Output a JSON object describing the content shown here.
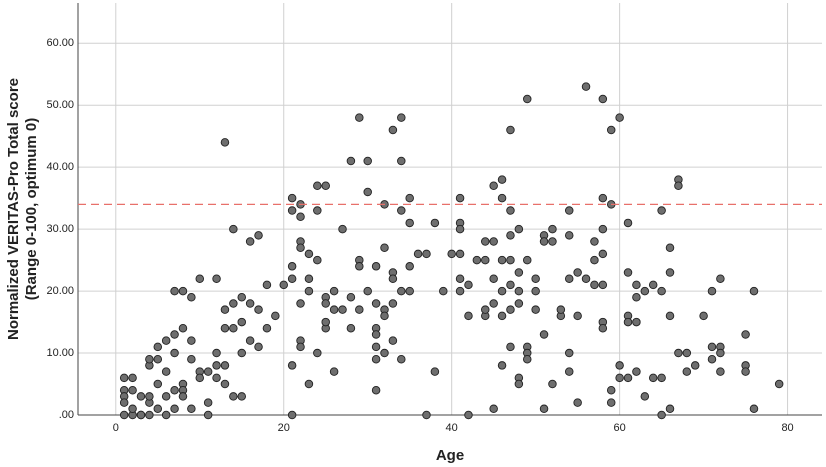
{
  "chart_data": {
    "type": "scatter",
    "xlabel": "Age",
    "ylabel": [
      "Normalized VERITAS-Pro Total score",
      "(Range 0-100, optimum 0)"
    ],
    "xlim": [
      -4.5,
      84.1
    ],
    "ylim": [
      0,
      66.5
    ],
    "xticks": [
      0,
      20,
      40,
      60,
      80
    ],
    "yticks": [
      {
        "value": 0,
        "label": ".00"
      },
      {
        "value": 10,
        "label": "10.00"
      },
      {
        "value": 20,
        "label": "20.00"
      },
      {
        "value": 30,
        "label": "30.00"
      },
      {
        "value": 40,
        "label": "40.00"
      },
      {
        "value": 50,
        "label": "50.00"
      },
      {
        "value": 60,
        "label": "60.00"
      }
    ],
    "grid": true,
    "color": "#6e6e6e",
    "reference_line": {
      "value": 34,
      "color": "#e8706a",
      "dashed": true
    },
    "x": [
      1,
      1,
      1,
      1,
      1,
      2,
      2,
      2,
      2,
      3,
      3,
      3,
      4,
      4,
      4,
      4,
      4,
      5,
      5,
      5,
      5,
      6,
      6,
      6,
      6,
      7,
      7,
      7,
      7,
      7,
      8,
      8,
      8,
      8,
      8,
      9,
      9,
      9,
      9,
      10,
      10,
      10,
      11,
      11,
      11,
      12,
      12,
      12,
      12,
      13,
      13,
      13,
      13,
      13,
      14,
      14,
      14,
      14,
      15,
      15,
      15,
      15,
      16,
      16,
      16,
      17,
      17,
      17,
      18,
      18,
      19,
      20,
      21,
      21,
      21,
      21,
      21,
      21,
      22,
      22,
      22,
      22,
      22,
      22,
      22,
      23,
      23,
      23,
      23,
      24,
      24,
      24,
      24,
      25,
      25,
      25,
      25,
      25,
      26,
      26,
      26,
      27,
      27,
      28,
      28,
      28,
      29,
      29,
      29,
      29,
      30,
      30,
      30,
      31,
      31,
      31,
      31,
      31,
      31,
      31,
      32,
      32,
      32,
      32,
      32,
      33,
      33,
      33,
      33,
      33,
      34,
      34,
      34,
      34,
      34,
      35,
      35,
      35,
      35,
      36,
      37,
      37,
      38,
      38,
      39,
      40,
      41,
      41,
      41,
      41,
      41,
      41,
      42,
      42,
      42,
      43,
      44,
      44,
      44,
      44,
      45,
      45,
      45,
      45,
      45,
      46,
      46,
      46,
      46,
      46,
      46,
      47,
      47,
      47,
      47,
      47,
      47,
      47,
      48,
      48,
      48,
      48,
      48,
      48,
      49,
      49,
      49,
      49,
      49,
      50,
      50,
      50,
      51,
      51,
      51,
      52,
      52,
      52,
      51,
      53,
      53,
      54,
      54,
      54,
      54,
      54,
      55,
      55,
      55,
      56,
      56,
      57,
      57,
      57,
      58,
      58,
      58,
      58,
      58,
      58,
      58,
      59,
      59,
      59,
      59,
      60,
      60,
      60,
      61,
      61,
      61,
      61,
      61,
      62,
      62,
      62,
      62,
      63,
      63,
      64,
      64,
      65,
      65,
      65,
      65,
      66,
      66,
      66,
      66,
      67,
      67,
      67,
      68,
      68,
      69,
      70,
      71,
      71,
      71,
      72,
      72,
      72,
      72,
      75,
      75,
      75,
      76,
      76,
      79
    ],
    "values": [
      6,
      4,
      3,
      2,
      0,
      0,
      6,
      4,
      1,
      3,
      0,
      0,
      2,
      3,
      0,
      8,
      9,
      9,
      11,
      5,
      1,
      7,
      3,
      0,
      12,
      13,
      10,
      4,
      1,
      20,
      14,
      20,
      5,
      4,
      3,
      19,
      12,
      9,
      1,
      22,
      7,
      6,
      7,
      2,
      0,
      22,
      10,
      6,
      8,
      44,
      17,
      14,
      8,
      5,
      30,
      18,
      14,
      3,
      19,
      15,
      10,
      3,
      28,
      18,
      12,
      29,
      17,
      11,
      21,
      14,
      16,
      21,
      0,
      8,
      22,
      24,
      33,
      35,
      34,
      32,
      28,
      27,
      18,
      12,
      11,
      5,
      26,
      22,
      20,
      37,
      33,
      25,
      10,
      37,
      19,
      18,
      14,
      15,
      7,
      17,
      20,
      30,
      17,
      19,
      14,
      41,
      48,
      25,
      24,
      17,
      41,
      36,
      20,
      24,
      18,
      14,
      13,
      11,
      9,
      4,
      34,
      27,
      17,
      16,
      10,
      46,
      23,
      22,
      18,
      12,
      48,
      41,
      33,
      20,
      9,
      35,
      31,
      24,
      20,
      26,
      26,
      0,
      31,
      7,
      20,
      26,
      35,
      31,
      30,
      26,
      22,
      20,
      21,
      16,
      0,
      25,
      16,
      17,
      25,
      28,
      37,
      28,
      22,
      18,
      1,
      38,
      35,
      25,
      20,
      16,
      8,
      46,
      33,
      29,
      25,
      21,
      17,
      11,
      30,
      23,
      20,
      18,
      6,
      5,
      51,
      25,
      11,
      10,
      9,
      22,
      20,
      17,
      29,
      28,
      13,
      30,
      28,
      5,
      1,
      16,
      17,
      33,
      29,
      22,
      10,
      7,
      23,
      16,
      2,
      53,
      22,
      25,
      28,
      21,
      51,
      35,
      30,
      26,
      21,
      15,
      14,
      46,
      34,
      4,
      2,
      48,
      8,
      6,
      31,
      23,
      16,
      15,
      6,
      21,
      19,
      15,
      7,
      3,
      20,
      21,
      6,
      33,
      20,
      6,
      0,
      27,
      23,
      16,
      1,
      38,
      37,
      10,
      10,
      7,
      8,
      16,
      20,
      11,
      9,
      22,
      11,
      10,
      7,
      13,
      8,
      7,
      20,
      1,
      5
    ]
  }
}
